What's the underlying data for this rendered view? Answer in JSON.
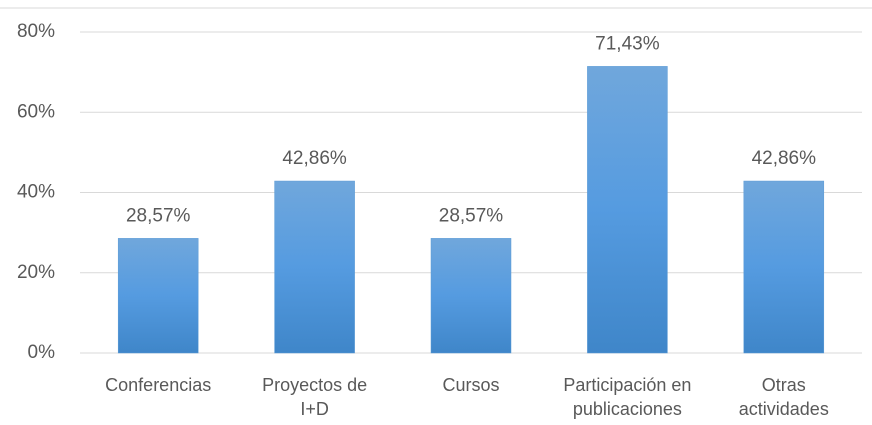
{
  "chart_data": {
    "type": "bar",
    "categories": [
      "Conferencias",
      "Proyectos de\nI+D",
      "Cursos",
      "Participación en\npublicaciones",
      "Otras\nactividades"
    ],
    "values": [
      28.57,
      42.86,
      28.57,
      71.43,
      42.86
    ],
    "value_labels": [
      "28,57%",
      "42,86%",
      "28,57%",
      "71,43%",
      "42,86%"
    ],
    "color": "#5b9bd5",
    "ylim": [
      0,
      80
    ],
    "yticks": [
      {
        "value": 0,
        "label": "0%"
      },
      {
        "value": 20,
        "label": "20%"
      },
      {
        "value": 40,
        "label": "40%"
      },
      {
        "value": 60,
        "label": "60%"
      },
      {
        "value": 80,
        "label": "80%"
      }
    ],
    "grid": true
  }
}
